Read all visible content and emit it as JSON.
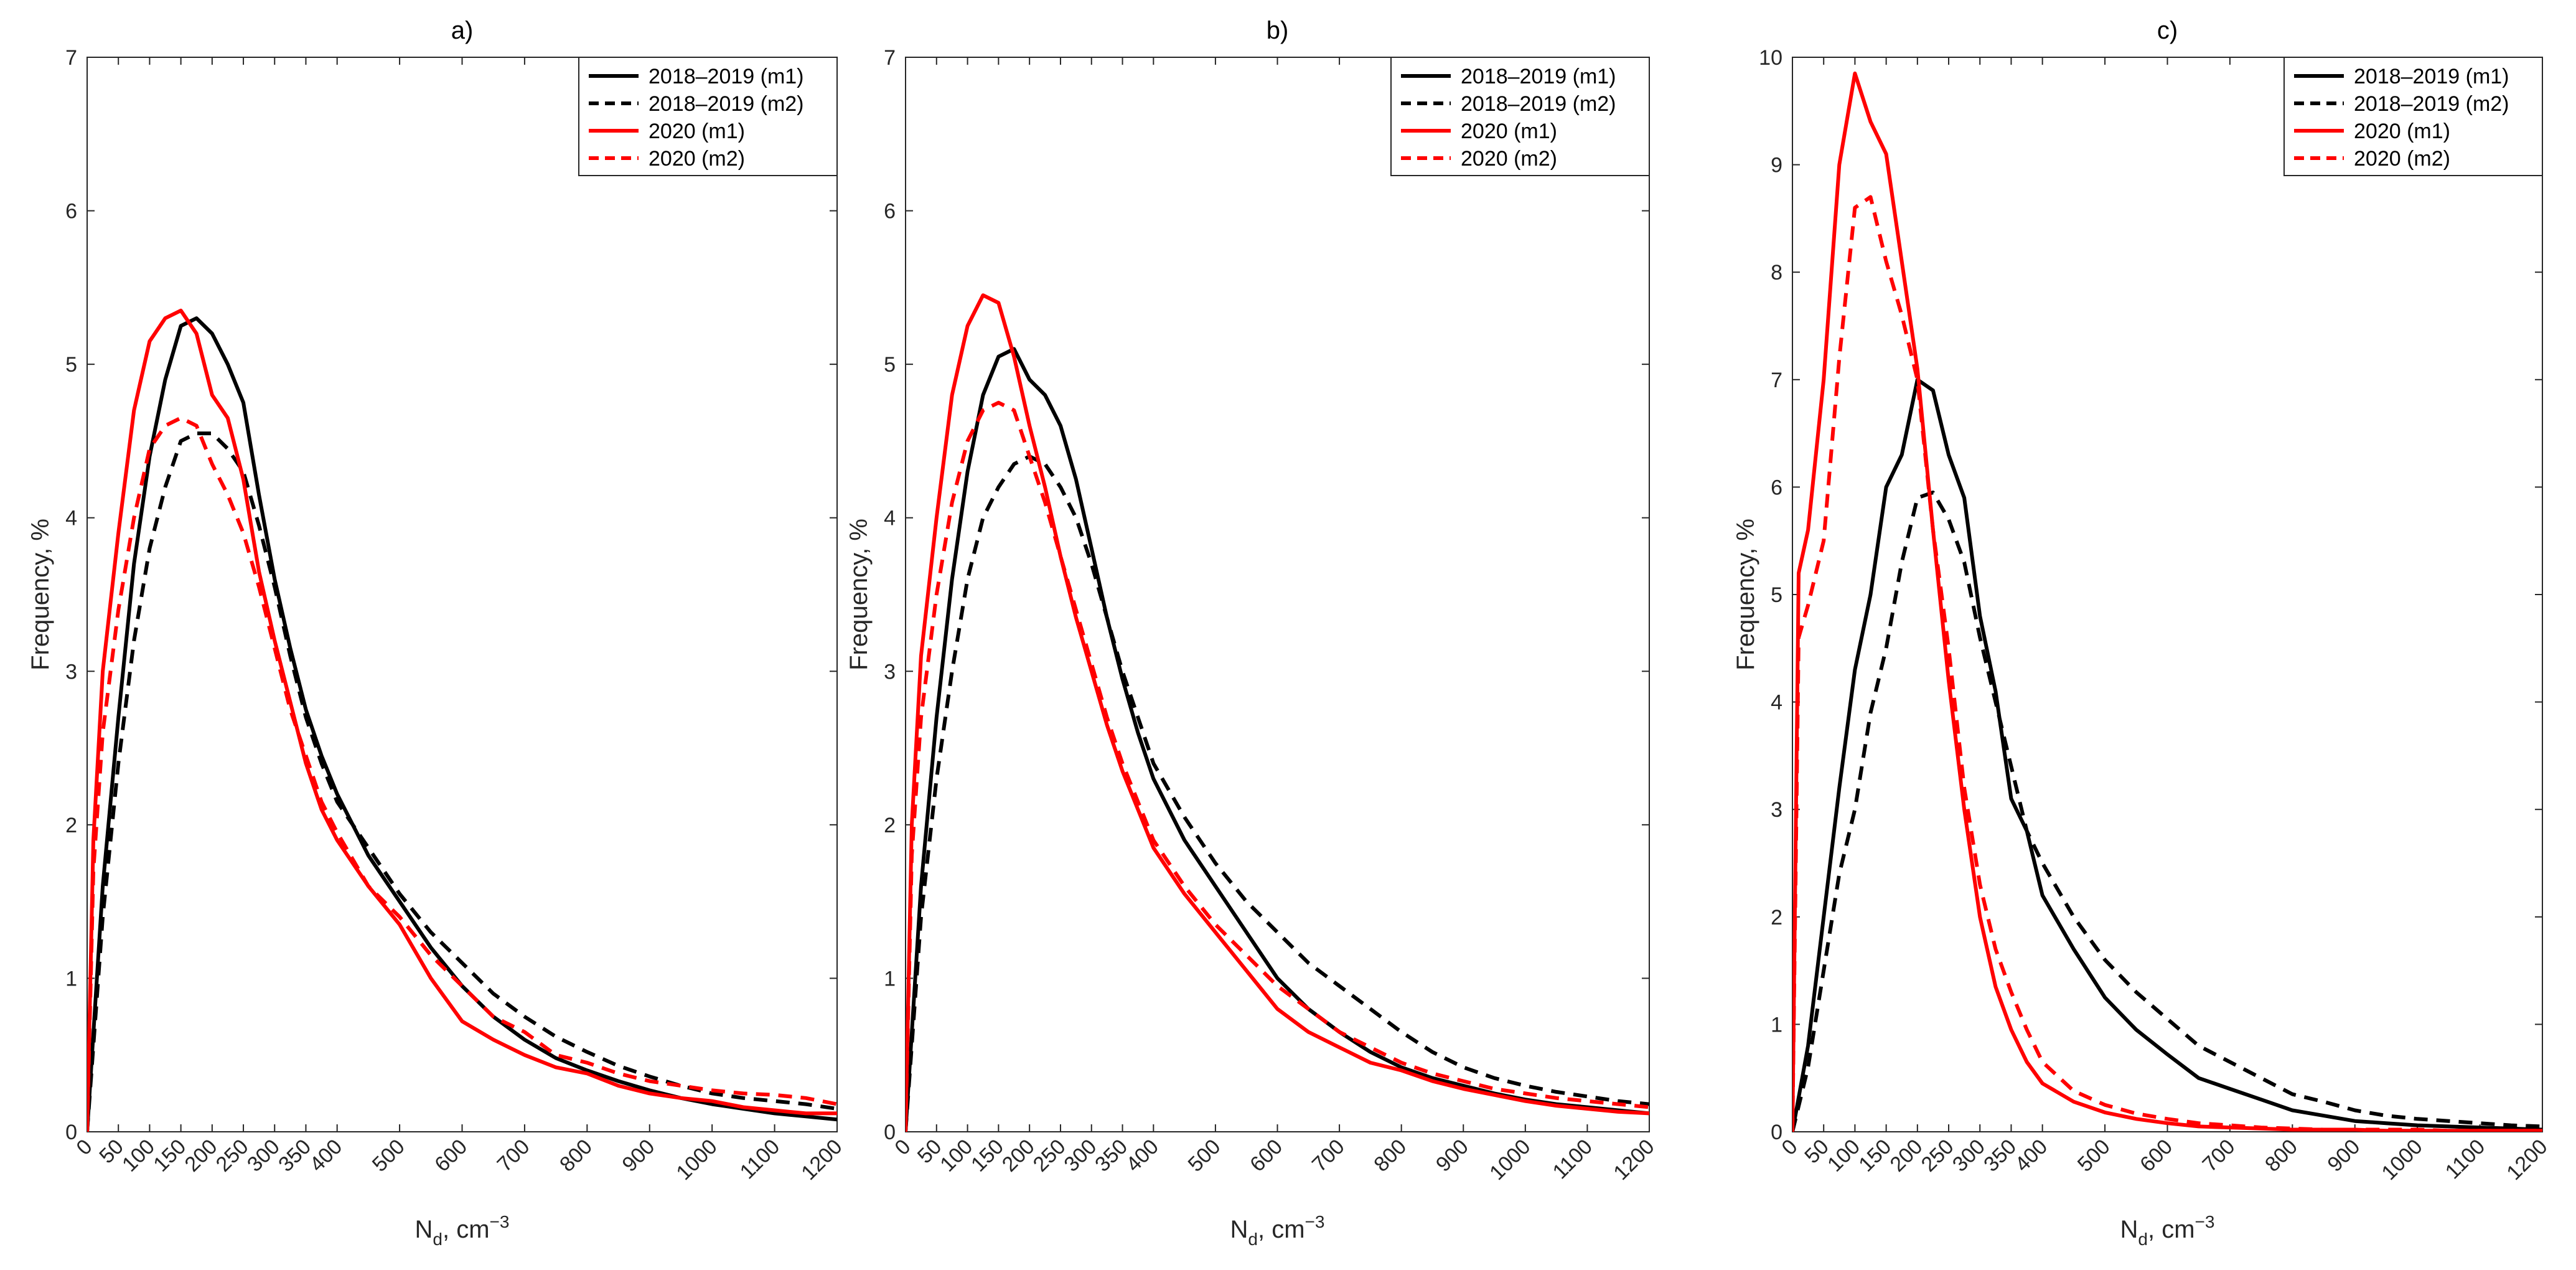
{
  "chart_data": [
    {
      "type": "line",
      "panel": "a",
      "title": "a)",
      "xlabel_main": "N",
      "xlabel_sub": "d",
      "xlabel_tail": ", cm",
      "xlabel_sup": "−3",
      "ylabel": "Frequency, %",
      "ylim": [
        0,
        7
      ],
      "yticks": [
        "0",
        "1",
        "2",
        "3",
        "4",
        "5",
        "6",
        "7"
      ],
      "xtick_labels": [
        "0",
        "50",
        "100",
        "150",
        "200",
        "250",
        "300",
        "350",
        "400",
        "500",
        "600",
        "700",
        "800",
        "900",
        "1000",
        "1100",
        "1200"
      ],
      "legend_position": "top-right",
      "series": [
        {
          "name": "2018–2019 (m1)",
          "color": "#000000",
          "dash": "solid",
          "x": [
            0,
            25,
            50,
            75,
            100,
            125,
            150,
            175,
            200,
            225,
            250,
            275,
            300,
            325,
            350,
            375,
            400,
            450,
            500,
            550,
            600,
            650,
            700,
            750,
            800,
            850,
            900,
            950,
            1000,
            1050,
            1100,
            1150,
            1200
          ],
          "y": [
            0,
            1.6,
            2.7,
            3.7,
            4.4,
            4.9,
            5.25,
            5.3,
            5.2,
            5.0,
            4.75,
            4.15,
            3.6,
            3.15,
            2.75,
            2.45,
            2.2,
            1.8,
            1.5,
            1.2,
            0.95,
            0.75,
            0.6,
            0.48,
            0.4,
            0.33,
            0.27,
            0.22,
            0.18,
            0.15,
            0.12,
            0.1,
            0.08
          ]
        },
        {
          "name": "2018–2019 (m2)",
          "color": "#000000",
          "dash": "dashed",
          "x": [
            0,
            25,
            50,
            75,
            100,
            125,
            150,
            175,
            200,
            225,
            250,
            275,
            300,
            325,
            350,
            375,
            400,
            450,
            500,
            550,
            600,
            650,
            700,
            750,
            800,
            850,
            900,
            950,
            1000,
            1050,
            1100,
            1150,
            1200
          ],
          "y": [
            0,
            1.4,
            2.4,
            3.2,
            3.8,
            4.2,
            4.5,
            4.55,
            4.55,
            4.45,
            4.3,
            3.95,
            3.55,
            3.1,
            2.7,
            2.4,
            2.15,
            1.85,
            1.55,
            1.3,
            1.1,
            0.9,
            0.75,
            0.62,
            0.52,
            0.43,
            0.36,
            0.3,
            0.25,
            0.22,
            0.2,
            0.18,
            0.15
          ]
        },
        {
          "name": "2020 (m1)",
          "color": "#ff0000",
          "dash": "solid",
          "x": [
            0,
            10,
            25,
            50,
            75,
            100,
            125,
            150,
            175,
            200,
            225,
            250,
            275,
            300,
            325,
            350,
            375,
            400,
            450,
            500,
            550,
            600,
            650,
            700,
            750,
            800,
            850,
            900,
            950,
            1000,
            1050,
            1100,
            1150,
            1200
          ],
          "y": [
            0,
            1.9,
            3.0,
            3.9,
            4.7,
            5.15,
            5.3,
            5.35,
            5.2,
            4.8,
            4.65,
            4.25,
            3.65,
            3.2,
            2.8,
            2.4,
            2.1,
            1.9,
            1.6,
            1.35,
            1.0,
            0.72,
            0.6,
            0.5,
            0.42,
            0.38,
            0.3,
            0.25,
            0.22,
            0.2,
            0.16,
            0.14,
            0.12,
            0.12
          ]
        },
        {
          "name": "2020 (m2)",
          "color": "#ff0000",
          "dash": "dashed",
          "x": [
            0,
            10,
            25,
            50,
            75,
            100,
            125,
            150,
            175,
            200,
            225,
            250,
            275,
            300,
            325,
            350,
            375,
            400,
            450,
            500,
            550,
            600,
            650,
            700,
            750,
            800,
            850,
            900,
            950,
            1000,
            1050,
            1100,
            1150,
            1200
          ],
          "y": [
            0,
            1.7,
            2.6,
            3.4,
            4.0,
            4.45,
            4.6,
            4.65,
            4.6,
            4.35,
            4.15,
            3.9,
            3.55,
            3.15,
            2.75,
            2.45,
            2.15,
            1.95,
            1.6,
            1.4,
            1.15,
            0.95,
            0.75,
            0.65,
            0.5,
            0.45,
            0.38,
            0.33,
            0.3,
            0.27,
            0.25,
            0.24,
            0.22,
            0.18
          ]
        }
      ]
    },
    {
      "type": "line",
      "panel": "b",
      "title": "b)",
      "xlabel_main": "N",
      "xlabel_sub": "d",
      "xlabel_tail": ", cm",
      "xlabel_sup": "−3",
      "ylabel": "Frequency, %",
      "ylim": [
        0,
        7
      ],
      "yticks": [
        "0",
        "1",
        "2",
        "3",
        "4",
        "5",
        "6",
        "7"
      ],
      "xtick_labels": [
        "0",
        "50",
        "100",
        "150",
        "200",
        "250",
        "300",
        "350",
        "400",
        "500",
        "600",
        "700",
        "800",
        "900",
        "1000",
        "1100",
        "1200"
      ],
      "legend_position": "top-right",
      "series": [
        {
          "name": "2018–2019 (m1)",
          "color": "#000000",
          "dash": "solid",
          "x": [
            0,
            25,
            50,
            75,
            100,
            125,
            150,
            175,
            200,
            225,
            250,
            275,
            300,
            325,
            350,
            375,
            400,
            450,
            500,
            550,
            600,
            650,
            700,
            750,
            800,
            850,
            900,
            950,
            1000,
            1050,
            1100,
            1150,
            1200
          ],
          "y": [
            0,
            1.6,
            2.7,
            3.6,
            4.3,
            4.8,
            5.05,
            5.1,
            4.9,
            4.8,
            4.6,
            4.25,
            3.8,
            3.35,
            2.95,
            2.6,
            2.3,
            1.9,
            1.6,
            1.3,
            1.0,
            0.8,
            0.65,
            0.52,
            0.42,
            0.35,
            0.3,
            0.25,
            0.21,
            0.18,
            0.16,
            0.14,
            0.12
          ]
        },
        {
          "name": "2018–2019 (m2)",
          "color": "#000000",
          "dash": "dashed",
          "x": [
            0,
            25,
            50,
            75,
            100,
            125,
            150,
            175,
            200,
            225,
            250,
            275,
            300,
            325,
            350,
            375,
            400,
            450,
            500,
            550,
            600,
            650,
            700,
            750,
            800,
            850,
            900,
            950,
            1000,
            1050,
            1100,
            1150,
            1200
          ],
          "y": [
            0,
            1.4,
            2.3,
            3.0,
            3.6,
            4.0,
            4.2,
            4.35,
            4.4,
            4.35,
            4.2,
            4.0,
            3.7,
            3.35,
            3.0,
            2.7,
            2.4,
            2.05,
            1.75,
            1.5,
            1.3,
            1.1,
            0.95,
            0.8,
            0.65,
            0.52,
            0.42,
            0.35,
            0.3,
            0.26,
            0.23,
            0.2,
            0.18
          ]
        },
        {
          "name": "2020 (m1)",
          "color": "#ff0000",
          "dash": "solid",
          "x": [
            0,
            10,
            25,
            50,
            75,
            100,
            125,
            150,
            175,
            200,
            225,
            250,
            275,
            300,
            325,
            350,
            375,
            400,
            450,
            500,
            550,
            600,
            650,
            700,
            750,
            800,
            850,
            900,
            950,
            1000,
            1050,
            1100,
            1150,
            1200
          ],
          "y": [
            0,
            2.0,
            3.1,
            4.0,
            4.8,
            5.25,
            5.45,
            5.4,
            5.05,
            4.6,
            4.2,
            3.75,
            3.35,
            3.0,
            2.65,
            2.35,
            2.1,
            1.85,
            1.55,
            1.3,
            1.05,
            0.8,
            0.65,
            0.55,
            0.45,
            0.4,
            0.33,
            0.28,
            0.24,
            0.2,
            0.17,
            0.15,
            0.13,
            0.12
          ]
        },
        {
          "name": "2020 (m2)",
          "color": "#ff0000",
          "dash": "dashed",
          "x": [
            0,
            10,
            25,
            50,
            75,
            100,
            125,
            150,
            175,
            200,
            225,
            250,
            275,
            300,
            325,
            350,
            375,
            400,
            450,
            500,
            550,
            600,
            650,
            700,
            750,
            800,
            850,
            900,
            950,
            1000,
            1050,
            1100,
            1150,
            1200
          ],
          "y": [
            0,
            1.8,
            2.7,
            3.5,
            4.1,
            4.5,
            4.7,
            4.75,
            4.7,
            4.4,
            4.1,
            3.75,
            3.4,
            3.05,
            2.7,
            2.4,
            2.15,
            1.9,
            1.6,
            1.35,
            1.15,
            0.95,
            0.8,
            0.65,
            0.55,
            0.45,
            0.38,
            0.33,
            0.28,
            0.25,
            0.22,
            0.2,
            0.18,
            0.16
          ]
        }
      ]
    },
    {
      "type": "line",
      "panel": "c",
      "title": "c)",
      "xlabel_main": "N",
      "xlabel_sub": "d",
      "xlabel_tail": ", cm",
      "xlabel_sup": "−3",
      "ylabel": "Frequency, %",
      "ylim": [
        0,
        10
      ],
      "yticks": [
        "0",
        "1",
        "2",
        "3",
        "4",
        "5",
        "6",
        "7",
        "8",
        "9",
        "10"
      ],
      "xtick_labels": [
        "0",
        "50",
        "100",
        "150",
        "200",
        "250",
        "300",
        "350",
        "400",
        "500",
        "600",
        "700",
        "800",
        "900",
        "1000",
        "1100",
        "1200"
      ],
      "legend_position": "top-right",
      "series": [
        {
          "name": "2018–2019 (m1)",
          "color": "#000000",
          "dash": "solid",
          "x": [
            0,
            25,
            50,
            75,
            100,
            125,
            150,
            175,
            200,
            225,
            250,
            275,
            300,
            325,
            350,
            375,
            400,
            450,
            500,
            550,
            600,
            650,
            700,
            750,
            800,
            850,
            900,
            950,
            1000,
            1050,
            1100,
            1150,
            1200
          ],
          "y": [
            0,
            0.8,
            2.0,
            3.2,
            4.3,
            5.0,
            6.0,
            6.3,
            7.0,
            6.9,
            6.3,
            5.9,
            4.8,
            4.1,
            3.1,
            2.8,
            2.2,
            1.7,
            1.25,
            0.95,
            0.72,
            0.5,
            0.4,
            0.3,
            0.2,
            0.15,
            0.1,
            0.08,
            0.06,
            0.05,
            0.04,
            0.03,
            0.02
          ]
        },
        {
          "name": "2018–2019 (m2)",
          "color": "#000000",
          "dash": "dashed",
          "x": [
            0,
            25,
            50,
            75,
            100,
            125,
            150,
            175,
            200,
            225,
            250,
            275,
            300,
            325,
            350,
            375,
            400,
            450,
            500,
            550,
            600,
            650,
            700,
            750,
            800,
            850,
            900,
            950,
            1000,
            1050,
            1100,
            1150,
            1200
          ],
          "y": [
            0,
            0.6,
            1.5,
            2.4,
            3.0,
            3.9,
            4.5,
            5.3,
            5.9,
            5.95,
            5.7,
            5.3,
            4.6,
            4.0,
            3.4,
            2.8,
            2.5,
            2.0,
            1.6,
            1.3,
            1.05,
            0.8,
            0.65,
            0.5,
            0.35,
            0.28,
            0.2,
            0.15,
            0.12,
            0.1,
            0.08,
            0.06,
            0.05
          ]
        },
        {
          "name": "2020 (m1)",
          "color": "#ff0000",
          "dash": "solid",
          "x": [
            0,
            10,
            25,
            50,
            75,
            100,
            125,
            150,
            175,
            200,
            225,
            250,
            275,
            300,
            325,
            350,
            375,
            400,
            450,
            500,
            550,
            600,
            650,
            700,
            750,
            800,
            850,
            900,
            950,
            1000,
            1050,
            1100,
            1150,
            1200
          ],
          "y": [
            0,
            5.2,
            5.6,
            7.0,
            9.0,
            9.85,
            9.4,
            9.1,
            8.1,
            7.1,
            5.6,
            4.2,
            3.0,
            2.0,
            1.35,
            0.95,
            0.65,
            0.45,
            0.28,
            0.18,
            0.12,
            0.08,
            0.05,
            0.04,
            0.03,
            0.02,
            0.02,
            0.02,
            0.01,
            0.01,
            0.01,
            0.01,
            0.01,
            0.01
          ]
        },
        {
          "name": "2020 (m2)",
          "color": "#ff0000",
          "dash": "dashed",
          "x": [
            0,
            10,
            25,
            50,
            75,
            100,
            125,
            150,
            175,
            200,
            225,
            250,
            275,
            300,
            325,
            350,
            375,
            400,
            450,
            500,
            550,
            600,
            650,
            700,
            750,
            800,
            850,
            900,
            950,
            1000,
            1050,
            1100,
            1150,
            1200
          ],
          "y": [
            0,
            4.6,
            4.9,
            5.5,
            7.2,
            8.6,
            8.7,
            8.1,
            7.6,
            7.0,
            5.6,
            4.5,
            3.2,
            2.3,
            1.7,
            1.3,
            0.95,
            0.65,
            0.38,
            0.25,
            0.17,
            0.12,
            0.08,
            0.06,
            0.04,
            0.03,
            0.02,
            0.02,
            0.02,
            0.02,
            0.01,
            0.01,
            0.01,
            0.01
          ]
        }
      ]
    }
  ]
}
